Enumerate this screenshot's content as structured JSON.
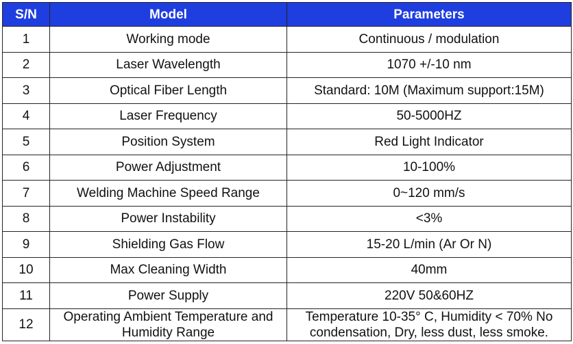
{
  "table": {
    "headers": {
      "sn": "S/N",
      "model": "Model",
      "parameters": "Parameters"
    },
    "rows": [
      {
        "sn": "1",
        "model": "Working mode",
        "value": "Continuous / modulation"
      },
      {
        "sn": "2",
        "model": "Laser Wavelength",
        "value": "1070 +/-10 nm"
      },
      {
        "sn": "3",
        "model": "Optical Fiber Length",
        "value": "Standard: 10M (Maximum support:15M)"
      },
      {
        "sn": "4",
        "model": "Laser Frequency",
        "value": "50-5000HZ"
      },
      {
        "sn": "5",
        "model": "Position System",
        "value": "Red Light Indicator"
      },
      {
        "sn": "6",
        "model": "Power Adjustment",
        "value": "10-100%"
      },
      {
        "sn": "7",
        "model": "Welding Machine Speed Range",
        "value": "0~120 mm/s"
      },
      {
        "sn": "8",
        "model": "Power Instability",
        "value": "<3%"
      },
      {
        "sn": "9",
        "model": "Shielding Gas Flow",
        "value": "15-20 L/min (Ar Or N)"
      },
      {
        "sn": "10",
        "model": "Max Cleaning Width",
        "value": "40mm"
      },
      {
        "sn": "11",
        "model": "Power Supply",
        "value": "220V 50&60HZ"
      },
      {
        "sn": "12",
        "model": "Operating Ambient Temperature and Humidity Range",
        "value": "Temperature 10-35° C, Humidity < 70% No condensation, Dry, less dust, less smoke."
      }
    ]
  },
  "colors": {
    "header_background": "#1f3ee0",
    "header_text": "#ffffff",
    "border": "#222222"
  }
}
